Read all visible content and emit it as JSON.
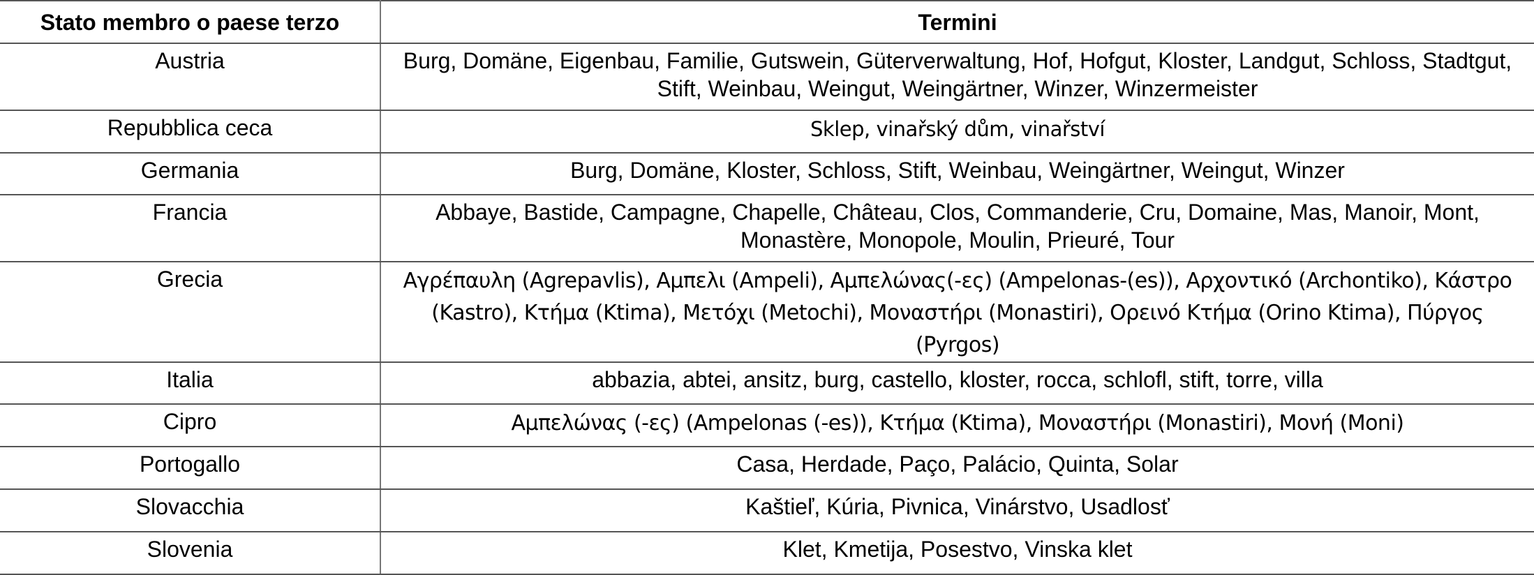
{
  "table": {
    "headers": [
      "Stato membro o paese terzo",
      "Termini"
    ],
    "rows": [
      {
        "country": "Austria",
        "terms": "Burg, Domäne, Eigenbau, Familie, Gutswein, Güterverwaltung, Hof, Hofgut, Kloster, Landgut, Schloss, Stadtgut, Stift, Weinbau, Weingut, Weingärtner, Winzer, Winzermeister"
      },
      {
        "country": "Repubblica ceca",
        "terms": "Sklep, vinařský dům, vinařství"
      },
      {
        "country": "Germania",
        "terms": "Burg, Domäne, Kloster, Schloss, Stift, Weinbau, Weingärtner, Weingut, Winzer"
      },
      {
        "country": "Francia",
        "terms": "Abbaye, Bastide, Campagne, Chapelle, Château, Clos, Commanderie, Cru, Domaine, Mas, Manoir, Mont, Monastère, Monopole, Moulin, Prieuré, Tour"
      },
      {
        "country": "Grecia",
        "terms": "Αγρέπαυλη (Agrepavlis), Αμπελι (Ampeli), Αμπελώνας(-ες) (Ampelonas-(es)), Αρχοντικό (Archontiko), Κάστρο (Kastro), Κτήμα (Ktima), Μετόχι (Metochi), Μοναστήρι (Monastiri), Ορεινό Κτήμα (Orino Ktima), Πύργος (Pyrgos)"
      },
      {
        "country": "Italia",
        "terms": "abbazia, abtei, ansitz, burg, castello, kloster, rocca, schlofl, stift, torre, villa"
      },
      {
        "country": "Cipro",
        "terms": "Αμπελώνας (-ες) (Ampelonas (-es)), Κτήμα (Ktima), Μοναστήρι (Monastiri), Μονή (Moni)"
      },
      {
        "country": "Portogallo",
        "terms": "Casa, Herdade, Paço, Palácio, Quinta, Solar"
      },
      {
        "country": "Slovacchia",
        "terms": "Kaštieľ, Kúria, Pivnica, Vinárstvo, Usadlosť"
      },
      {
        "country": "Slovenia",
        "terms": "Klet, Kmetija, Posestvo, Vinska klet"
      }
    ]
  }
}
